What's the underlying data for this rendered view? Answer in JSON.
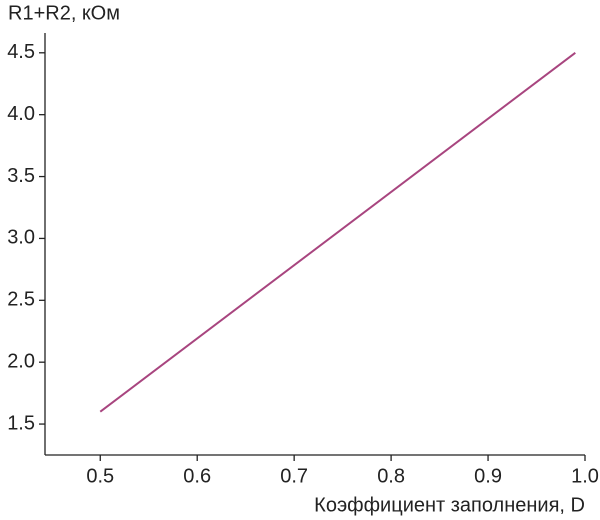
{
  "chart_data": {
    "type": "line",
    "y_label": "R1+R2, кОм",
    "x_label": "Коэффициент заполнения, D",
    "x": [
      0.5,
      0.99
    ],
    "values": [
      1.6,
      4.5
    ],
    "color": "#a8457f",
    "xlim": [
      0.443,
      1.0
    ],
    "ylim": [
      1.25,
      4.66
    ],
    "xticks": [
      0.5,
      0.6,
      0.7,
      0.8,
      0.9,
      {
        "value": 1,
        "label": "1.0"
      }
    ],
    "yticks": [
      1.5,
      {
        "value": 2,
        "label": "2.0"
      },
      2.5,
      {
        "value": 3,
        "label": "3.0"
      },
      3.5,
      {
        "value": 4,
        "label": "4.0"
      },
      4.5
    ],
    "grid": false
  }
}
